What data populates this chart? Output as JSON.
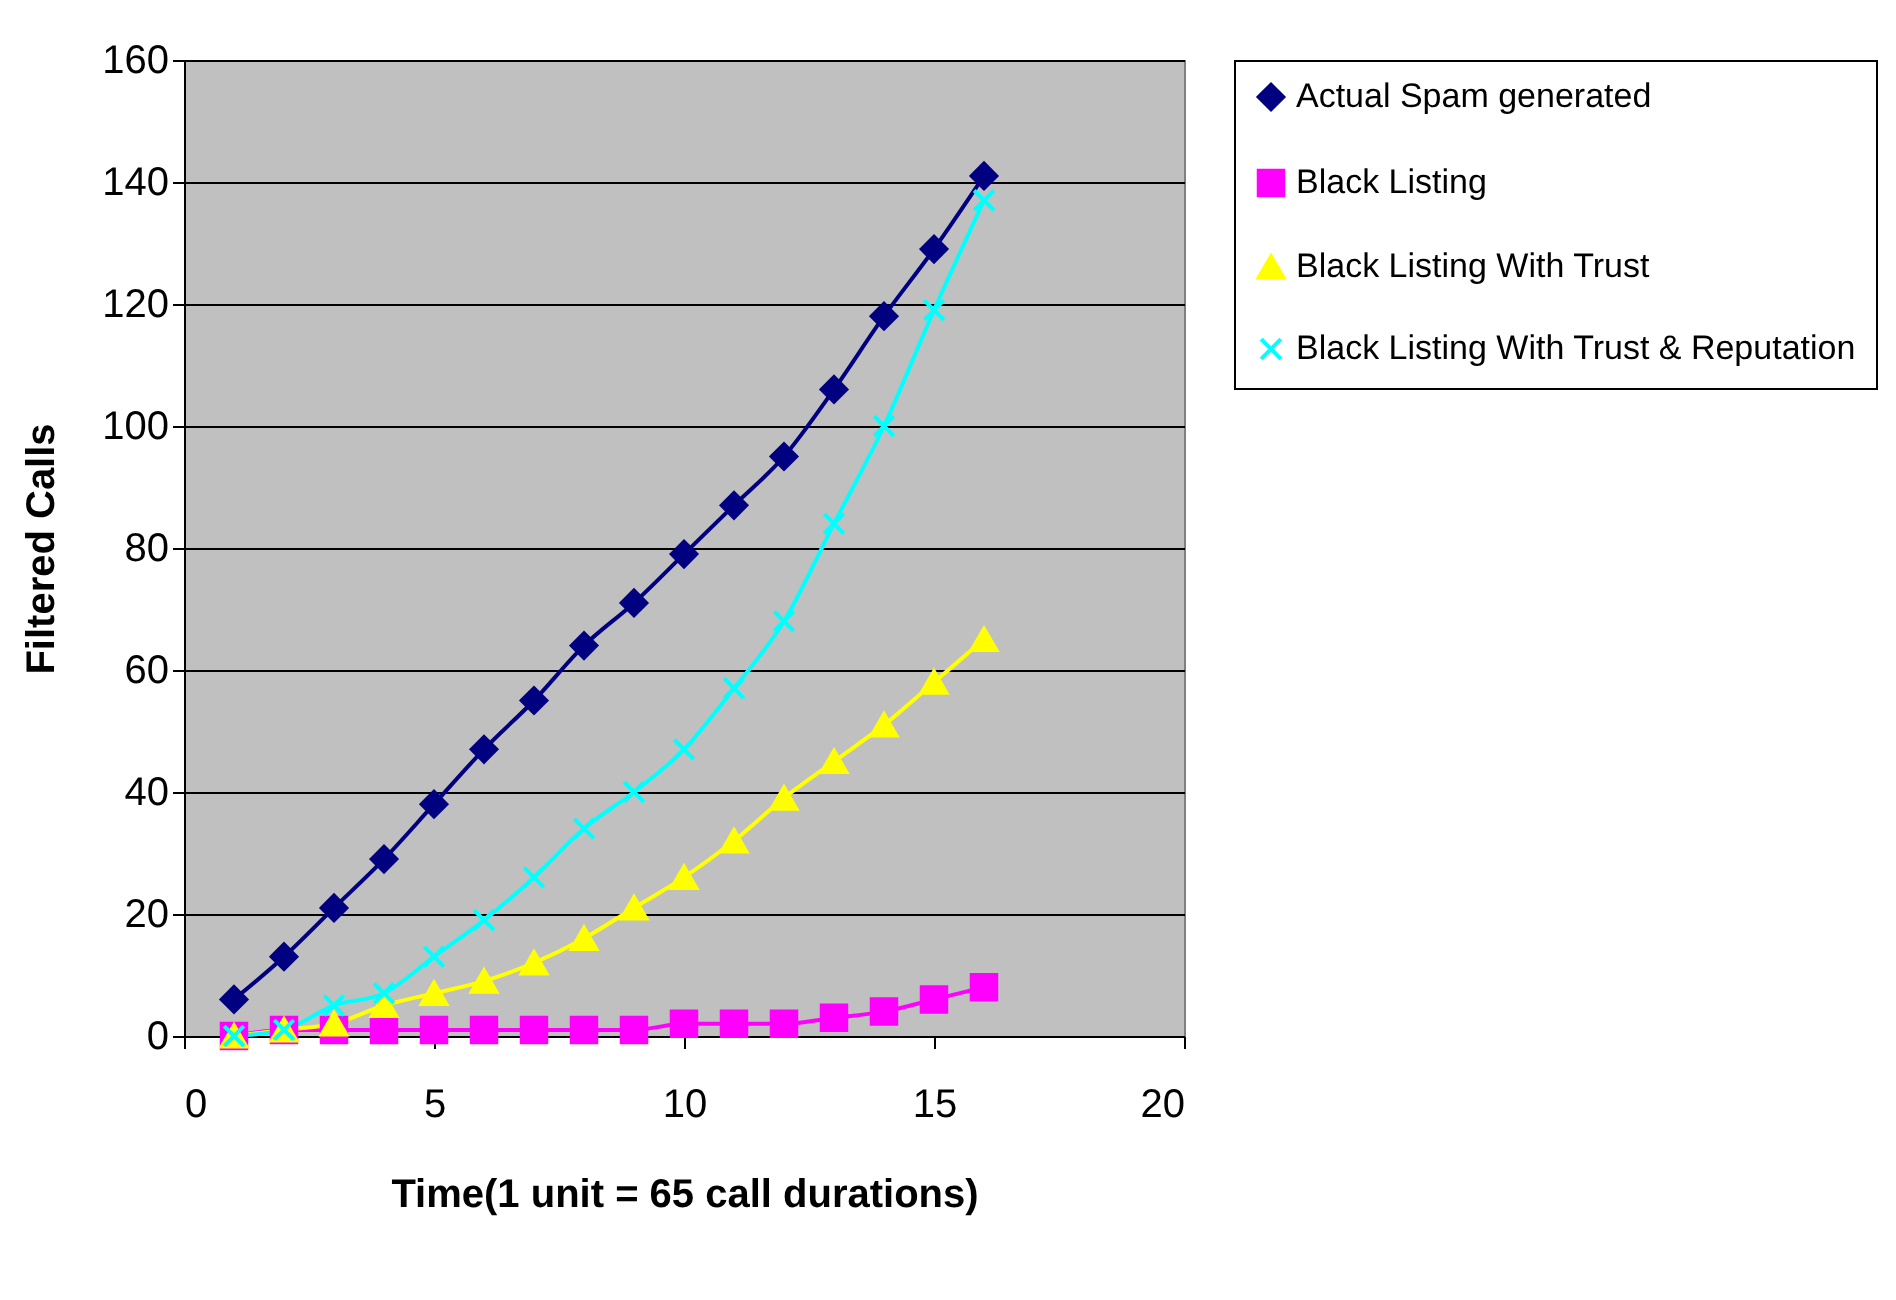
{
  "chart_data": {
    "type": "line",
    "xlabel": "Time(1 unit = 65 call durations)",
    "ylabel": "Filtered Calls",
    "x": [
      1,
      2,
      3,
      4,
      5,
      6,
      7,
      8,
      9,
      10,
      11,
      12,
      13,
      14,
      15,
      16
    ],
    "xlim": [
      0,
      20
    ],
    "xticks": [
      0,
      5,
      10,
      15,
      20
    ],
    "ylim": [
      0,
      160
    ],
    "yticks": [
      0,
      20,
      40,
      60,
      80,
      100,
      120,
      140,
      160
    ],
    "grid": "y",
    "legend": "right",
    "series": [
      {
        "name": "Actual Spam generated",
        "color": "#000080",
        "marker": "diamond",
        "values": [
          6,
          13,
          21,
          29,
          38,
          47,
          55,
          64,
          71,
          79,
          87,
          95,
          106,
          118,
          129,
          141
        ]
      },
      {
        "name": "Black Listing",
        "color": "#ff00ff",
        "marker": "square",
        "values": [
          0,
          1,
          1,
          1,
          1,
          1,
          1,
          1,
          1,
          2,
          2,
          2,
          3,
          4,
          6,
          8
        ]
      },
      {
        "name": "Black Listing With Trust",
        "color": "#ffff00",
        "marker": "triangle",
        "values": [
          0,
          1,
          2,
          5,
          7,
          9,
          12,
          16,
          21,
          26,
          32,
          39,
          45,
          51,
          58,
          65
        ]
      },
      {
        "name": "Black Listing With Trust & Reputation",
        "color": "#00ffff",
        "marker": "cross",
        "values": [
          0,
          1,
          5,
          7,
          13,
          19,
          26,
          34,
          40,
          47,
          57,
          68,
          84,
          100,
          119,
          137
        ]
      }
    ]
  }
}
